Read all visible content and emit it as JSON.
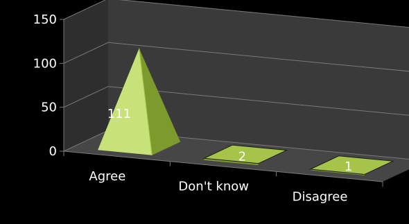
{
  "chart_data": {
    "type": "bar",
    "variant": "3d-pyramid",
    "categories": [
      "Agree",
      "Don't know",
      "Disagree"
    ],
    "values": [
      111,
      2,
      1
    ],
    "data_labels": [
      "111",
      "2",
      "1"
    ],
    "ylim": [
      0,
      150
    ],
    "yticks": [
      0,
      50,
      100,
      150
    ],
    "ytick_labels": [
      "0",
      "50",
      "100",
      "150"
    ],
    "grid": true,
    "legend": false,
    "colors": {
      "background": "#000000",
      "back_wall": "#3a3a3a",
      "side_wall": "#2e2e2e",
      "floor": "#464646",
      "gridline": "#7a7a7a",
      "bar_light": "#c8e27a",
      "bar_mid": "#a6c34a",
      "bar_dark": "#7d9a2c",
      "text": "#ffffff"
    }
  }
}
